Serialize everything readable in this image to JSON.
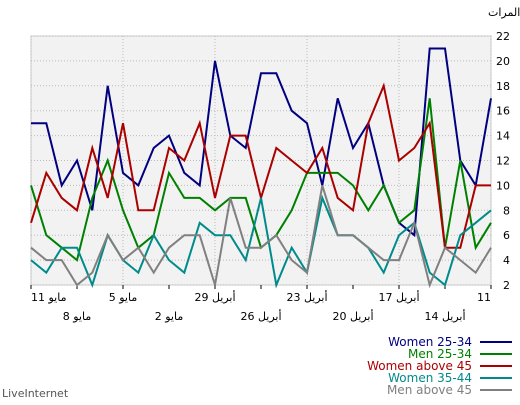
{
  "chart_data": {
    "type": "line",
    "ylabel": "المرات",
    "ylim": [
      2,
      22
    ],
    "yticks": [
      2,
      4,
      6,
      8,
      10,
      12,
      14,
      16,
      18,
      20,
      22
    ],
    "xlabels_upper": [
      "11 مايو",
      "5 مايو",
      "29 أبريل",
      "23 أبريل",
      "17 أبريل",
      "11"
    ],
    "xlabels_lower": [
      "8 مايو",
      "2 مايو",
      "26 أبريل",
      "20 أبريل",
      "14 أبريل"
    ],
    "grid": true,
    "legend_position": "bottom-right",
    "series": [
      {
        "name": "Women 25-34",
        "color": "#000080",
        "values": [
          15,
          15,
          10,
          12,
          8,
          18,
          11,
          10,
          13,
          14,
          11,
          10,
          20,
          14,
          13,
          19,
          19,
          16,
          15,
          10,
          17,
          13,
          15,
          10,
          7,
          6,
          21,
          21,
          12,
          10,
          17
        ]
      },
      {
        "name": "Men 25-34",
        "color": "#008000",
        "values": [
          10,
          6,
          5,
          4,
          9,
          12,
          8,
          5,
          6,
          11,
          9,
          9,
          8,
          9,
          9,
          5,
          6,
          8,
          11,
          11,
          11,
          10,
          8,
          10,
          7,
          8,
          17,
          5,
          12,
          5,
          7
        ]
      },
      {
        "name": "Women above 45",
        "color": "#aa0000",
        "values": [
          7,
          11,
          9,
          8,
          13,
          9,
          15,
          8,
          8,
          13,
          12,
          15,
          9,
          14,
          14,
          9,
          13,
          12,
          11,
          13,
          9,
          8,
          15,
          18,
          12,
          13,
          15,
          5,
          5,
          10,
          10
        ]
      },
      {
        "name": "Women 35-44",
        "color": "#008b8b",
        "values": [
          4,
          3,
          5,
          5,
          2,
          6,
          4,
          3,
          6,
          4,
          3,
          7,
          6,
          6,
          4,
          9,
          2,
          5,
          3,
          9,
          6,
          6,
          5,
          3,
          6,
          7,
          3,
          2,
          6,
          7,
          8
        ]
      },
      {
        "name": "Men above 45",
        "color": "#808080",
        "values": [
          5,
          4,
          4,
          2,
          3,
          6,
          4,
          5,
          3,
          5,
          6,
          6,
          2,
          9,
          5,
          5,
          6,
          4,
          3,
          10,
          6,
          6,
          5,
          4,
          4,
          7,
          2,
          5,
          4,
          3,
          5
        ]
      }
    ]
  },
  "credit": "LiveInternet"
}
